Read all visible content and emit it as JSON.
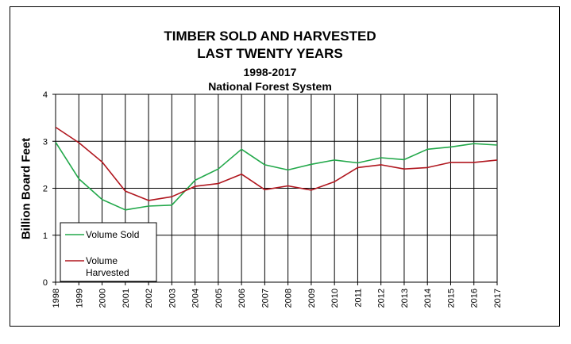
{
  "chart_data": {
    "type": "line",
    "title_lines": [
      "TIMBER SOLD AND HARVESTED",
      "LAST TWENTY YEARS"
    ],
    "subtitle_lines": [
      "1998-2017",
      "National Forest System"
    ],
    "xlabel": "",
    "ylabel": "Billion Board Feet",
    "ylim": [
      0,
      4
    ],
    "y_ticks": [
      "0",
      "1",
      "2",
      "3",
      "4"
    ],
    "categories": [
      "1998",
      "1999",
      "2000",
      "2001",
      "2002",
      "2003",
      "2004",
      "2005",
      "2006",
      "2007",
      "2008",
      "2009",
      "2010",
      "2011",
      "2012",
      "2013",
      "2014",
      "2015",
      "2016",
      "2017"
    ],
    "grid": true,
    "legend_position": "bottom-left",
    "series": [
      {
        "name": "Volume Sold",
        "color": "#22a84a",
        "values": [
          2.98,
          2.2,
          1.76,
          1.54,
          1.62,
          1.64,
          2.17,
          2.41,
          2.83,
          2.5,
          2.39,
          2.51,
          2.6,
          2.54,
          2.65,
          2.61,
          2.83,
          2.88,
          2.95,
          2.92
        ]
      },
      {
        "name": "Volume Harvested",
        "legend_lines": [
          "Volume",
          "Harvested"
        ],
        "color": "#b0161e",
        "values": [
          3.3,
          2.97,
          2.56,
          1.94,
          1.74,
          1.82,
          2.04,
          2.1,
          2.3,
          1.97,
          2.05,
          1.96,
          2.14,
          2.44,
          2.5,
          2.41,
          2.44,
          2.55,
          2.55,
          2.6
        ]
      }
    ]
  }
}
